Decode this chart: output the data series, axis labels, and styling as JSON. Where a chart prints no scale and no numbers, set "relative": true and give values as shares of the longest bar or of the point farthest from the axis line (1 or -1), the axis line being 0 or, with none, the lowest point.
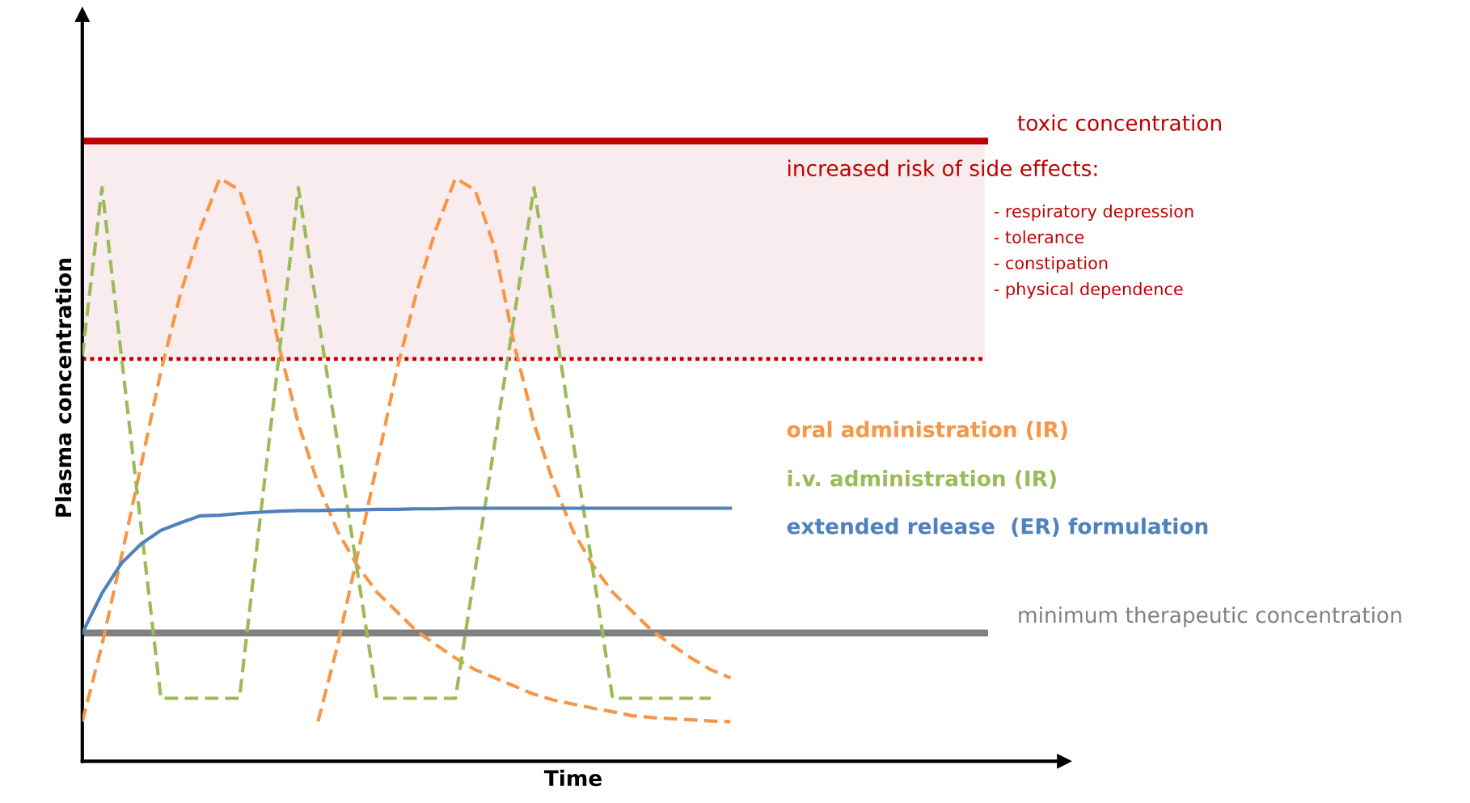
{
  "chart_data": {
    "type": "line",
    "relative": true,
    "xlabel": "Time",
    "ylabel": "Plasma concentration",
    "ylim": [
      0,
      1.281
    ],
    "legend": false,
    "line_style": "dashed",
    "marker": "none",
    "categories": [
      null,
      null,
      null,
      null,
      null,
      null,
      null,
      null,
      null,
      null,
      null,
      null,
      null,
      null,
      null,
      null,
      null,
      null,
      null,
      null,
      null,
      null,
      null,
      null,
      null,
      null,
      null,
      null,
      null,
      null,
      null,
      null,
      null,
      null,
      null,
      null,
      null,
      null,
      null,
      null,
      null,
      null,
      null,
      null,
      null,
      null,
      null,
      null,
      null,
      null,
      null
    ],
    "series": [
      {
        "name": "oral administration (IR)",
        "color": "#f79646",
        "values": [
          0.068,
          0.199,
          0.352,
          0.509,
          0.669,
          0.802,
          0.912,
          1,
          0.98,
          0.88,
          0.714,
          0.579,
          0.476,
          0.394,
          0.336,
          0.29,
          0.257,
          0.224,
          0.2,
          0.177,
          0.157,
          0.143,
          0.129,
          0.115,
          0.105,
          0.098,
          0.091,
          0.085,
          0.078,
          0.075,
          0.073,
          0.071,
          0.069,
          0.068,
          null,
          null,
          null,
          null,
          null,
          null,
          null,
          null,
          null,
          null,
          null,
          null,
          null,
          null,
          null,
          null,
          null
        ]
      },
      {
        "color": "#f79646",
        "values": [
          null,
          null,
          null,
          null,
          null,
          null,
          null,
          null,
          null,
          null,
          null,
          null,
          0.068,
          0.199,
          0.352,
          0.509,
          0.669,
          0.802,
          0.912,
          1,
          0.98,
          0.88,
          0.714,
          0.579,
          0.476,
          0.394,
          0.336,
          0.29,
          0.257,
          0.224,
          0.2,
          0.177,
          0.157,
          0.143,
          null,
          null,
          null,
          null,
          null,
          null,
          null,
          null,
          null,
          null,
          null,
          null,
          null,
          null,
          null,
          null,
          null
        ]
      },
      {
        "name": "i.v. administration (IR)",
        "color": "#9bbb59",
        "values": [
          0.695,
          0.984,
          0.692,
          0.4,
          0.108,
          0.108,
          0.108,
          0.108,
          0.108,
          0.4,
          0.692,
          0.984,
          0.765,
          0.546,
          0.327,
          0.108,
          0.108,
          0.108,
          0.108,
          0.108,
          0.327,
          0.546,
          0.765,
          0.984,
          0.765,
          0.546,
          0.327,
          0.108,
          0.108,
          0.108,
          0.108,
          0.108,
          0.108,
          null,
          null,
          null,
          null,
          null,
          null,
          null,
          null,
          null,
          null,
          null,
          null,
          null,
          null,
          null,
          null,
          null,
          null
        ]
      },
      {
        "name": "extended release  (ER) formulation",
        "color": "#4f81bd",
        "line_style": "solid",
        "values": [
          0.22,
          0.288,
          0.34,
          0.373,
          0.396,
          0.409,
          0.421,
          0.422,
          0.425,
          0.427,
          0.429,
          0.43,
          0.43,
          0.431,
          0.431,
          0.432,
          0.432,
          0.433,
          0.433,
          0.434,
          0.434,
          0.434,
          0.434,
          0.434,
          0.434,
          0.434,
          0.434,
          0.434,
          0.434,
          0.434,
          0.434,
          0.434,
          0.434,
          0.434,
          null,
          null,
          null,
          null,
          null,
          null,
          null,
          null,
          null,
          null,
          null,
          null,
          null,
          null,
          null,
          null,
          null
        ]
      }
    ],
    "ref_lines": [
      {
        "axis": "y",
        "value": 1.064,
        "label": "toxic concentration",
        "color": "#c00000",
        "line_style": "solid"
      },
      {
        "axis": "y",
        "value": 0.69,
        "color": "#c00000",
        "line_style": "dotted"
      },
      {
        "axis": "y",
        "value": 0.22,
        "label": "minimum therapeutic concentration",
        "color": "#808080",
        "line_style": "solid"
      }
    ],
    "bands": [
      {
        "axis": "y",
        "from": 0.69,
        "to": 1.064,
        "color": "#f9ecee"
      }
    ],
    "annotations": [
      "increased risk of side effects:",
      "- respiratory depression\n- tolerance\n- constipation\n- physical dependence"
    ]
  }
}
